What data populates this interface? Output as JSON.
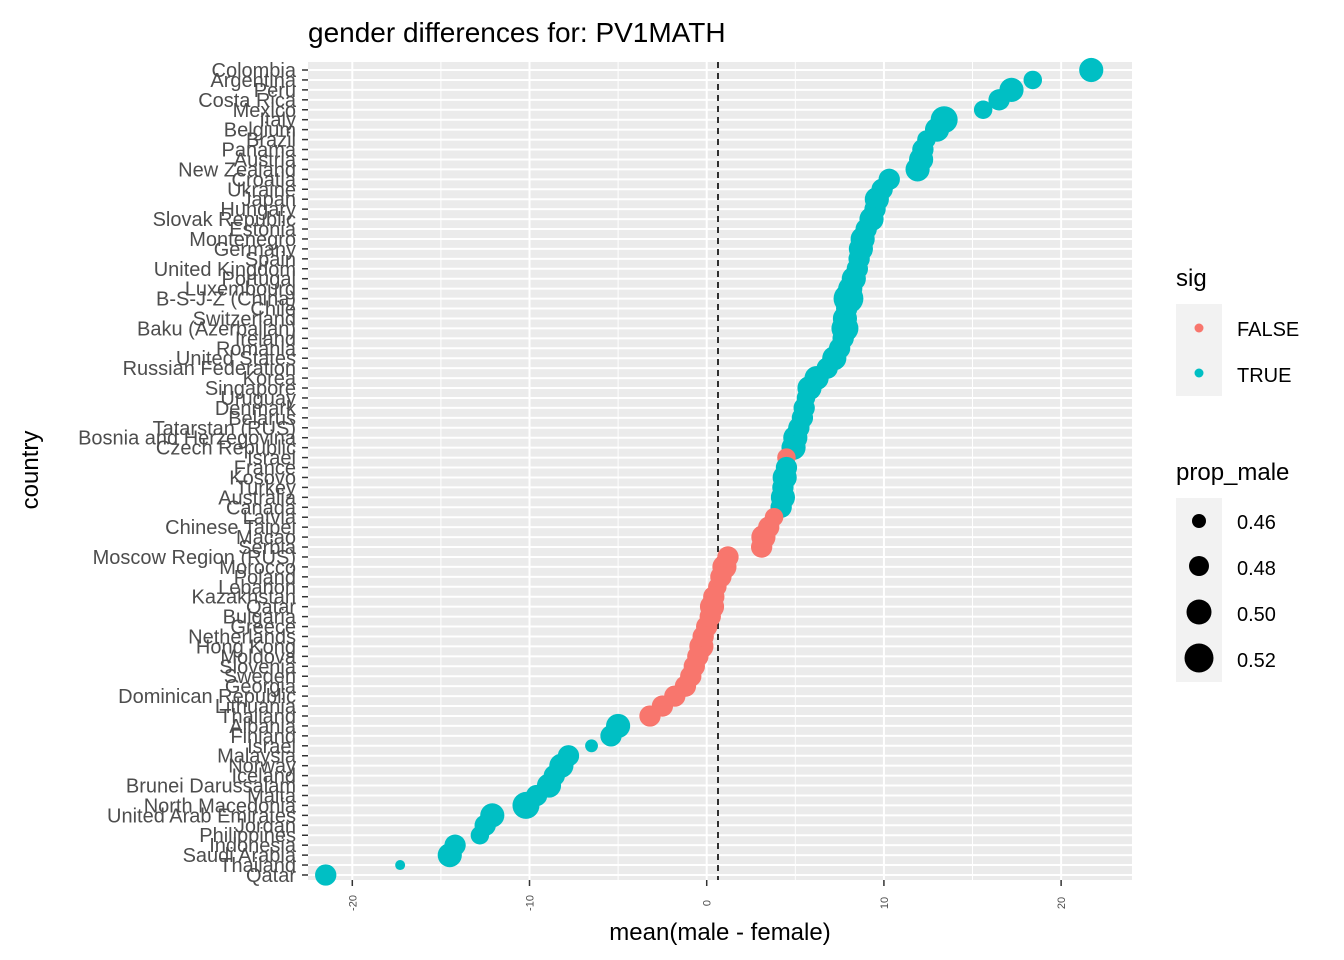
{
  "chart_data": {
    "type": "scatter",
    "title": "gender differences for: PV1MATH",
    "xlabel": "mean(male - female)",
    "ylabel": "country",
    "xlim": [
      -22.5,
      24
    ],
    "x_ticks": [
      -20,
      -10,
      0,
      10,
      20
    ],
    "x_tick_labels": [
      "-20",
      "-10",
      "0",
      "10",
      "20"
    ],
    "reference_line": {
      "x": 0,
      "style": "dashed"
    },
    "grid": true,
    "legend_placement": "right",
    "colors": {
      "FALSE": "#F8766D",
      "TRUE": "#00BFC4",
      "panel": "#EBEBEB",
      "grid": "#FFFFFF"
    },
    "legend": {
      "color_title": "sig",
      "color_items": [
        {
          "label": "FALSE",
          "color": "#F8766D"
        },
        {
          "label": "TRUE",
          "color": "#00BFC4"
        }
      ],
      "size_title": "prop_male",
      "size_items": [
        "0.46",
        "0.48",
        "0.50",
        "0.52"
      ]
    },
    "points": [
      {
        "country": "Colombia",
        "x": 21.7,
        "prop_male": 0.51,
        "sig": "TRUE"
      },
      {
        "country": "Argentina",
        "x": 18.4,
        "prop_male": 0.49,
        "sig": "TRUE"
      },
      {
        "country": "Peru",
        "x": 17.2,
        "prop_male": 0.51,
        "sig": "TRUE"
      },
      {
        "country": "Costa Rica",
        "x": 16.5,
        "prop_male": 0.5,
        "sig": "TRUE"
      },
      {
        "country": "Mexico",
        "x": 15.6,
        "prop_male": 0.49,
        "sig": "TRUE"
      },
      {
        "country": "Italy",
        "x": 13.4,
        "prop_male": 0.52,
        "sig": "TRUE"
      },
      {
        "country": "Belgium",
        "x": 13.0,
        "prop_male": 0.51,
        "sig": "TRUE"
      },
      {
        "country": "Brazil",
        "x": 12.4,
        "prop_male": 0.49,
        "sig": "TRUE"
      },
      {
        "country": "Panama",
        "x": 12.2,
        "prop_male": 0.5,
        "sig": "TRUE"
      },
      {
        "country": "Austria",
        "x": 12.1,
        "prop_male": 0.51,
        "sig": "TRUE"
      },
      {
        "country": "New Zealand",
        "x": 11.9,
        "prop_male": 0.51,
        "sig": "TRUE"
      },
      {
        "country": "Croatia",
        "x": 10.3,
        "prop_male": 0.5,
        "sig": "TRUE"
      },
      {
        "country": "Ukraine",
        "x": 9.9,
        "prop_male": 0.5,
        "sig": "TRUE"
      },
      {
        "country": "Japan",
        "x": 9.6,
        "prop_male": 0.51,
        "sig": "TRUE"
      },
      {
        "country": "Hungary",
        "x": 9.5,
        "prop_male": 0.5,
        "sig": "TRUE"
      },
      {
        "country": "Slovak Republic",
        "x": 9.3,
        "prop_male": 0.51,
        "sig": "TRUE"
      },
      {
        "country": "Estonia",
        "x": 9.0,
        "prop_male": 0.5,
        "sig": "TRUE"
      },
      {
        "country": "Montenegro",
        "x": 8.8,
        "prop_male": 0.51,
        "sig": "TRUE"
      },
      {
        "country": "Germany",
        "x": 8.7,
        "prop_male": 0.51,
        "sig": "TRUE"
      },
      {
        "country": "Spain",
        "x": 8.6,
        "prop_male": 0.5,
        "sig": "TRUE"
      },
      {
        "country": "United Kingdom",
        "x": 8.5,
        "prop_male": 0.5,
        "sig": "TRUE"
      },
      {
        "country": "Portugal",
        "x": 8.3,
        "prop_male": 0.51,
        "sig": "TRUE"
      },
      {
        "country": "Luxembourg",
        "x": 8.1,
        "prop_male": 0.51,
        "sig": "TRUE"
      },
      {
        "country": "B-S-J-Z (China)",
        "x": 8.0,
        "prop_male": 0.53,
        "sig": "TRUE"
      },
      {
        "country": "Chile",
        "x": 7.9,
        "prop_male": 0.5,
        "sig": "TRUE"
      },
      {
        "country": "Switzerland",
        "x": 7.8,
        "prop_male": 0.51,
        "sig": "TRUE"
      },
      {
        "country": "Baku (Azerbaijan)",
        "x": 7.8,
        "prop_male": 0.52,
        "sig": "TRUE"
      },
      {
        "country": "Ireland",
        "x": 7.7,
        "prop_male": 0.5,
        "sig": "TRUE"
      },
      {
        "country": "Romania",
        "x": 7.5,
        "prop_male": 0.5,
        "sig": "TRUE"
      },
      {
        "country": "United States",
        "x": 7.2,
        "prop_male": 0.51,
        "sig": "TRUE"
      },
      {
        "country": "Russian Federation",
        "x": 6.8,
        "prop_male": 0.5,
        "sig": "TRUE"
      },
      {
        "country": "Korea",
        "x": 6.2,
        "prop_male": 0.51,
        "sig": "TRUE"
      },
      {
        "country": "Singapore",
        "x": 5.8,
        "prop_male": 0.51,
        "sig": "TRUE"
      },
      {
        "country": "Uruguay",
        "x": 5.6,
        "prop_male": 0.49,
        "sig": "TRUE"
      },
      {
        "country": "Denmark",
        "x": 5.5,
        "prop_male": 0.5,
        "sig": "TRUE"
      },
      {
        "country": "Belarus",
        "x": 5.4,
        "prop_male": 0.5,
        "sig": "TRUE"
      },
      {
        "country": "Tatarstan (RUS)",
        "x": 5.2,
        "prop_male": 0.5,
        "sig": "TRUE"
      },
      {
        "country": "Bosnia and Herzegovina",
        "x": 5.0,
        "prop_male": 0.51,
        "sig": "TRUE"
      },
      {
        "country": "Czech Republic",
        "x": 4.9,
        "prop_male": 0.51,
        "sig": "TRUE"
      },
      {
        "country": "Israel",
        "x": 4.5,
        "prop_male": 0.49,
        "sig": "FALSE"
      },
      {
        "country": "France",
        "x": 4.5,
        "prop_male": 0.5,
        "sig": "TRUE"
      },
      {
        "country": "Kosovo",
        "x": 4.4,
        "prop_male": 0.51,
        "sig": "TRUE"
      },
      {
        "country": "Turkey",
        "x": 4.3,
        "prop_male": 0.5,
        "sig": "TRUE"
      },
      {
        "country": "Australia",
        "x": 4.3,
        "prop_male": 0.51,
        "sig": "TRUE"
      },
      {
        "country": "Canada",
        "x": 4.2,
        "prop_male": 0.5,
        "sig": "TRUE"
      },
      {
        "country": "Latvia",
        "x": 3.8,
        "prop_male": 0.49,
        "sig": "FALSE"
      },
      {
        "country": "Chinese Taipei",
        "x": 3.5,
        "prop_male": 0.5,
        "sig": "FALSE"
      },
      {
        "country": "Macao",
        "x": 3.2,
        "prop_male": 0.51,
        "sig": "FALSE"
      },
      {
        "country": "Serbia",
        "x": 3.1,
        "prop_male": 0.5,
        "sig": "FALSE"
      },
      {
        "country": "Moscow Region (RUS)",
        "x": 1.2,
        "prop_male": 0.5,
        "sig": "FALSE"
      },
      {
        "country": "Morocco",
        "x": 1.0,
        "prop_male": 0.51,
        "sig": "FALSE"
      },
      {
        "country": "Poland",
        "x": 0.8,
        "prop_male": 0.5,
        "sig": "FALSE"
      },
      {
        "country": "Lebanon",
        "x": 0.6,
        "prop_male": 0.49,
        "sig": "FALSE"
      },
      {
        "country": "Kazakhstan",
        "x": 0.4,
        "prop_male": 0.5,
        "sig": "FALSE"
      },
      {
        "country": "Qatar",
        "x": 0.3,
        "prop_male": 0.51,
        "sig": "FALSE"
      },
      {
        "country": "Bulgaria",
        "x": 0.2,
        "prop_male": 0.5,
        "sig": "FALSE"
      },
      {
        "country": "Greece",
        "x": 0.0,
        "prop_male": 0.5,
        "sig": "FALSE"
      },
      {
        "country": "Netherlands",
        "x": -0.2,
        "prop_male": 0.5,
        "sig": "FALSE"
      },
      {
        "country": "Hong Kong",
        "x": -0.3,
        "prop_male": 0.51,
        "sig": "FALSE"
      },
      {
        "country": "Moldova",
        "x": -0.5,
        "prop_male": 0.5,
        "sig": "FALSE"
      },
      {
        "country": "Slovenia",
        "x": -0.7,
        "prop_male": 0.5,
        "sig": "FALSE"
      },
      {
        "country": "Sweden",
        "x": -0.9,
        "prop_male": 0.5,
        "sig": "FALSE"
      },
      {
        "country": "Georgia",
        "x": -1.2,
        "prop_male": 0.5,
        "sig": "FALSE"
      },
      {
        "country": "Dominican Republic",
        "x": -1.8,
        "prop_male": 0.5,
        "sig": "FALSE"
      },
      {
        "country": "Lithuania",
        "x": -2.5,
        "prop_male": 0.5,
        "sig": "FALSE"
      },
      {
        "country": "Thailand",
        "x": -3.2,
        "prop_male": 0.5,
        "sig": "FALSE"
      },
      {
        "country": "Albania",
        "x": -5.0,
        "prop_male": 0.51,
        "sig": "TRUE"
      },
      {
        "country": "Finland",
        "x": -5.4,
        "prop_male": 0.5,
        "sig": "TRUE"
      },
      {
        "country": "Israel",
        "x": -6.5,
        "prop_male": 0.47,
        "sig": "TRUE"
      },
      {
        "country": "Malaysia",
        "x": -7.8,
        "prop_male": 0.5,
        "sig": "TRUE"
      },
      {
        "country": "Norway",
        "x": -8.2,
        "prop_male": 0.51,
        "sig": "TRUE"
      },
      {
        "country": "Iceland",
        "x": -8.6,
        "prop_male": 0.5,
        "sig": "TRUE"
      },
      {
        "country": "Brunei Darussalam",
        "x": -8.9,
        "prop_male": 0.51,
        "sig": "TRUE"
      },
      {
        "country": "Malta",
        "x": -9.6,
        "prop_male": 0.5,
        "sig": "TRUE"
      },
      {
        "country": "North Macedonia",
        "x": -10.2,
        "prop_male": 0.52,
        "sig": "TRUE"
      },
      {
        "country": "United Arab Emirates",
        "x": -12.1,
        "prop_male": 0.51,
        "sig": "TRUE"
      },
      {
        "country": "Jordan",
        "x": -12.5,
        "prop_male": 0.5,
        "sig": "TRUE"
      },
      {
        "country": "Philippines",
        "x": -12.8,
        "prop_male": 0.49,
        "sig": "TRUE"
      },
      {
        "country": "Indonesia",
        "x": -14.2,
        "prop_male": 0.5,
        "sig": "TRUE"
      },
      {
        "country": "Saudi Arabia",
        "x": -14.5,
        "prop_male": 0.51,
        "sig": "TRUE"
      },
      {
        "country": "Thailand",
        "x": -17.3,
        "prop_male": 0.46,
        "sig": "TRUE"
      },
      {
        "country": "Qatar",
        "x": -21.5,
        "prop_male": 0.5,
        "sig": "TRUE"
      }
    ],
    "y_tick_labels": [
      "Colombia",
      "Argentina",
      "Peru",
      "Costa Rica",
      "Mexico",
      "Italy",
      "Belgium",
      "Brazil",
      "Panama",
      "Austria",
      "New Zealand",
      "Croatia",
      "Ukraine",
      "Japan",
      "Hungary",
      "Slovak Republic",
      "Estonia",
      "Montenegro",
      "Germany",
      "Spain",
      "United Kingdom",
      "Portugal",
      "Luxembourg",
      "B-S-J-Z (China)",
      "Chile",
      "Switzerland",
      "Baku (Azerbaijan)",
      "Ireland",
      "Romania",
      "United States",
      "Russian Federation",
      "Korea",
      "Singapore",
      "Uruguay",
      "Denmark",
      "Belarus",
      "Tatarstan (RUS)",
      "Bosnia and Herzegovina",
      "Czech Republic",
      "Israel",
      "France",
      "Kosovo",
      "Turkey",
      "Australia",
      "Canada",
      "Latvia",
      "Chinese Taipei",
      "Macao",
      "Serbia",
      "Moscow Region (RUS)",
      "Morocco",
      "Poland",
      "Lebanon",
      "Kazakhstan",
      "Qatar",
      "Bulgaria",
      "Greece",
      "Netherlands",
      "Hong Kong",
      "Moldova",
      "Slovenia",
      "Sweden",
      "Georgia",
      "Dominican Republic",
      "Lithuania",
      "Thailand",
      "Albania",
      "Finland",
      "Israel",
      "Malaysia",
      "Norway",
      "Iceland",
      "Brunei Darussalam",
      "Malta",
      "North Macedonia",
      "United Arab Emirates",
      "Jordan",
      "Philippines",
      "Indonesia",
      "Saudi Arabia",
      "Thailand",
      "Qatar"
    ]
  }
}
